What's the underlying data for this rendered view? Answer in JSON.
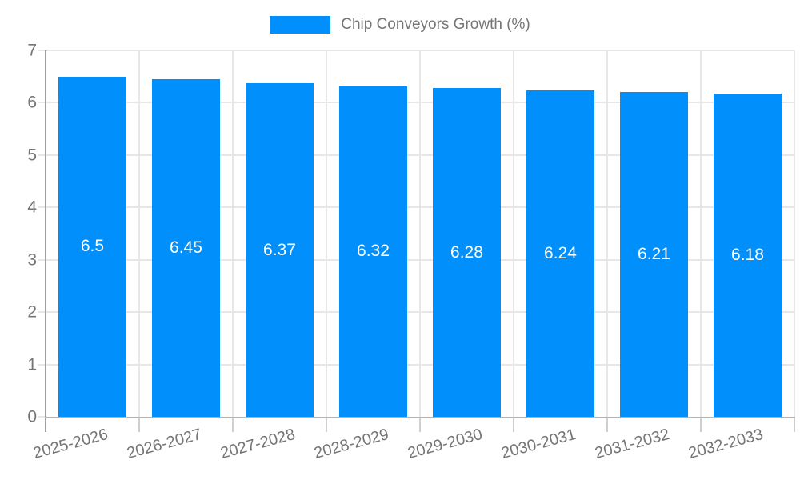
{
  "chart": {
    "legend": {
      "label": "Chip Conveyors Growth (%)"
    },
    "colors": {
      "bar": "#008FFB",
      "grid": "#e7e7e7",
      "axis": "#b3b3b3",
      "yaxis": "#a0a0a0",
      "tick_label": "#757575",
      "legend_text": "#757575",
      "data_label": "#ffffff",
      "background": "#ffffff"
    }
  },
  "chart_data": {
    "type": "bar",
    "title": "Chip Conveyors Growth (%)",
    "series_name": "Chip Conveyors Growth (%)",
    "categories": [
      "2025-2026",
      "2026-2027",
      "2027-2028",
      "2028-2029",
      "2029-2030",
      "2030-2031",
      "2031-2032",
      "2032-2033"
    ],
    "values": [
      6.5,
      6.45,
      6.37,
      6.32,
      6.28,
      6.24,
      6.21,
      6.18
    ],
    "value_labels": [
      "6.5",
      "6.45",
      "6.37",
      "6.32",
      "6.28",
      "6.24",
      "6.21",
      "6.18"
    ],
    "xlabel": "",
    "ylabel": "",
    "ylim": [
      0,
      7
    ],
    "yticks": [
      0,
      1,
      2,
      3,
      4,
      5,
      6,
      7
    ],
    "grid": true,
    "legend_position": "top-center",
    "x_label_rotation_deg": -15,
    "data_labels_position": "middle"
  }
}
